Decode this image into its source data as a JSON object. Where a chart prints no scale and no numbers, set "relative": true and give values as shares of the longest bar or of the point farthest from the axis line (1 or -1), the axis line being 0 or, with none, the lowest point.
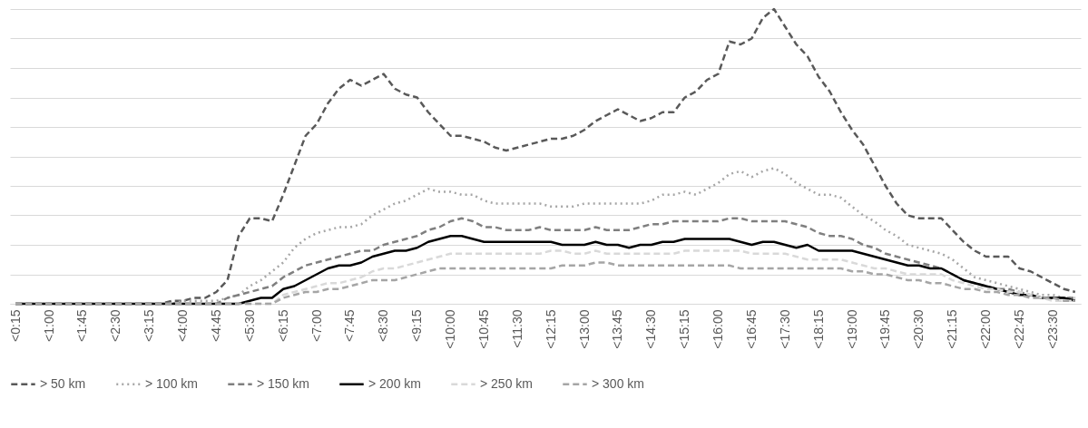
{
  "chart_data": {
    "type": "line",
    "relative": true,
    "grid": "y",
    "legend": "bottom",
    "categories": [
      "<0:15",
      null,
      null,
      "<1:00",
      null,
      null,
      "<1:45",
      null,
      null,
      "<2:30",
      null,
      null,
      "<3:15",
      null,
      null,
      "<4:00",
      null,
      null,
      "<4:45",
      null,
      null,
      "<5:30",
      null,
      null,
      "<6:15",
      null,
      null,
      "<7:00",
      null,
      null,
      "<7:45",
      null,
      null,
      "<8:30",
      null,
      null,
      "<9:15",
      null,
      null,
      "<10:00",
      null,
      null,
      "<10:45",
      null,
      null,
      "<11:30",
      null,
      null,
      "<12:15",
      null,
      null,
      "<13:00",
      null,
      null,
      "<13:45",
      null,
      null,
      "<14:30",
      null,
      null,
      "<15:15",
      null,
      null,
      "<16:00",
      null,
      null,
      "<16:45",
      null,
      null,
      "<17:30",
      null,
      null,
      "<18:15",
      null,
      null,
      "<19:00",
      null,
      null,
      "<19:45",
      null,
      null,
      "<20:30",
      null,
      null,
      "<21:15",
      null,
      null,
      "<22:00",
      null,
      null,
      "<22:45",
      null,
      null,
      "<23:30",
      null,
      null
    ],
    "series": [
      {
        "name": "> 50 km",
        "color": "#595959",
        "line_style": "dashed",
        "values": [
          0,
          0,
          0,
          0,
          0,
          0,
          0,
          0,
          0,
          0,
          0,
          0,
          0,
          0,
          0.01,
          0.01,
          0.02,
          0.02,
          0.04,
          0.08,
          0.23,
          0.29,
          0.29,
          0.28,
          0.37,
          0.47,
          0.57,
          0.61,
          0.68,
          0.73,
          0.76,
          0.74,
          0.76,
          0.78,
          0.73,
          0.71,
          0.7,
          0.65,
          0.61,
          0.57,
          0.57,
          0.56,
          0.55,
          0.53,
          0.52,
          0.53,
          0.54,
          0.55,
          0.56,
          0.56,
          0.57,
          0.59,
          0.62,
          0.64,
          0.66,
          0.64,
          0.62,
          0.63,
          0.65,
          0.65,
          0.7,
          0.72,
          0.76,
          0.78,
          0.89,
          0.88,
          0.9,
          0.97,
          1,
          0.94,
          0.88,
          0.84,
          0.77,
          0.72,
          0.65,
          0.59,
          0.54,
          0.47,
          0.4,
          0.34,
          0.3,
          0.29,
          0.29,
          0.29,
          0.25,
          0.21,
          0.18,
          0.16,
          0.16,
          0.16,
          0.12,
          0.11,
          0.09,
          0.07,
          0.05,
          0.04
        ]
      },
      {
        "name": "> 100 km",
        "color": "#a6a6a6",
        "line_style": "dotted",
        "values": [
          0,
          0,
          0,
          0,
          0,
          0,
          0,
          0,
          0,
          0,
          0,
          0,
          0,
          0,
          0,
          0.01,
          0.01,
          0.01,
          0.01,
          0.02,
          0.03,
          0.06,
          0.08,
          0.11,
          0.14,
          0.19,
          0.22,
          0.24,
          0.25,
          0.26,
          0.26,
          0.27,
          0.3,
          0.32,
          0.34,
          0.35,
          0.37,
          0.39,
          0.38,
          0.38,
          0.37,
          0.37,
          0.35,
          0.34,
          0.34,
          0.34,
          0.34,
          0.34,
          0.33,
          0.33,
          0.33,
          0.34,
          0.34,
          0.34,
          0.34,
          0.34,
          0.34,
          0.35,
          0.37,
          0.37,
          0.38,
          0.37,
          0.39,
          0.41,
          0.44,
          0.45,
          0.43,
          0.45,
          0.46,
          0.44,
          0.41,
          0.39,
          0.37,
          0.37,
          0.36,
          0.33,
          0.3,
          0.28,
          0.25,
          0.23,
          0.2,
          0.19,
          0.18,
          0.17,
          0.15,
          0.12,
          0.09,
          0.08,
          0.07,
          0.06,
          0.05,
          0.04,
          0.03,
          0.03,
          0.02,
          0.02
        ]
      },
      {
        "name": "> 150 km",
        "color": "#7f7f7f",
        "line_style": "dashed",
        "values": [
          0,
          0,
          0,
          0,
          0,
          0,
          0,
          0,
          0,
          0,
          0,
          0,
          0,
          0,
          0,
          0,
          0,
          0,
          0,
          0.02,
          0.03,
          0.04,
          0.05,
          0.06,
          0.09,
          0.11,
          0.13,
          0.14,
          0.15,
          0.16,
          0.17,
          0.18,
          0.18,
          0.2,
          0.21,
          0.22,
          0.23,
          0.25,
          0.26,
          0.28,
          0.29,
          0.28,
          0.26,
          0.26,
          0.25,
          0.25,
          0.25,
          0.26,
          0.25,
          0.25,
          0.25,
          0.25,
          0.26,
          0.25,
          0.25,
          0.25,
          0.26,
          0.27,
          0.27,
          0.28,
          0.28,
          0.28,
          0.28,
          0.28,
          0.29,
          0.29,
          0.28,
          0.28,
          0.28,
          0.28,
          0.27,
          0.26,
          0.24,
          0.23,
          0.23,
          0.22,
          0.2,
          0.19,
          0.17,
          0.16,
          0.15,
          0.14,
          0.13,
          0.12,
          0.1,
          0.08,
          0.07,
          0.06,
          0.05,
          0.05,
          0.04,
          0.03,
          0.02,
          0.02,
          0.02,
          0.02
        ]
      },
      {
        "name": "> 200 km",
        "color": "#000000",
        "line_style": "solid",
        "values": [
          0,
          0,
          0,
          0,
          0,
          0,
          0,
          0,
          0,
          0,
          0,
          0,
          0,
          0,
          0,
          0,
          0,
          0,
          0,
          0,
          0,
          0.01,
          0.02,
          0.02,
          0.05,
          0.06,
          0.08,
          0.1,
          0.12,
          0.13,
          0.13,
          0.14,
          0.16,
          0.17,
          0.18,
          0.18,
          0.19,
          0.21,
          0.22,
          0.23,
          0.23,
          0.22,
          0.21,
          0.21,
          0.21,
          0.21,
          0.21,
          0.21,
          0.21,
          0.2,
          0.2,
          0.2,
          0.21,
          0.2,
          0.2,
          0.19,
          0.2,
          0.2,
          0.21,
          0.21,
          0.22,
          0.22,
          0.22,
          0.22,
          0.22,
          0.21,
          0.2,
          0.21,
          0.21,
          0.2,
          0.19,
          0.2,
          0.18,
          0.18,
          0.18,
          0.18,
          0.17,
          0.16,
          0.15,
          0.14,
          0.13,
          0.13,
          0.12,
          0.12,
          0.1,
          0.08,
          0.07,
          0.06,
          0.05,
          0.04,
          0.03,
          0.03,
          0.02,
          0.02,
          0.02,
          0.01
        ]
      },
      {
        "name": "> 250 km",
        "color": "#d9d9d9",
        "line_style": "dashed",
        "values": [
          0,
          0,
          0,
          0,
          0,
          0,
          0,
          0,
          0,
          0,
          0,
          0,
          0,
          0,
          0,
          0,
          0,
          0,
          0,
          0,
          0,
          0,
          0,
          0,
          0.03,
          0.04,
          0.05,
          0.06,
          0.07,
          0.07,
          0.08,
          0.09,
          0.11,
          0.12,
          0.12,
          0.13,
          0.14,
          0.15,
          0.16,
          0.17,
          0.17,
          0.17,
          0.17,
          0.17,
          0.17,
          0.17,
          0.17,
          0.17,
          0.18,
          0.18,
          0.17,
          0.17,
          0.18,
          0.17,
          0.17,
          0.17,
          0.17,
          0.17,
          0.17,
          0.17,
          0.18,
          0.18,
          0.18,
          0.18,
          0.18,
          0.18,
          0.17,
          0.17,
          0.17,
          0.17,
          0.16,
          0.15,
          0.15,
          0.15,
          0.15,
          0.14,
          0.13,
          0.12,
          0.12,
          0.11,
          0.1,
          0.1,
          0.1,
          0.1,
          0.08,
          0.07,
          0.06,
          0.05,
          0.05,
          0.04,
          0.04,
          0.03,
          0.02,
          0.01,
          0.01,
          0.01
        ]
      },
      {
        "name": "> 300 km",
        "color": "#a5a5a5",
        "line_style": "dashed",
        "values": [
          0,
          0,
          0,
          0,
          0,
          0,
          0,
          0,
          0,
          0,
          0,
          0,
          0,
          0,
          0,
          0,
          0,
          0,
          0,
          0,
          0,
          0,
          0,
          0,
          0.02,
          0.03,
          0.04,
          0.04,
          0.05,
          0.05,
          0.06,
          0.07,
          0.08,
          0.08,
          0.08,
          0.09,
          0.1,
          0.11,
          0.12,
          0.12,
          0.12,
          0.12,
          0.12,
          0.12,
          0.12,
          0.12,
          0.12,
          0.12,
          0.12,
          0.13,
          0.13,
          0.13,
          0.14,
          0.14,
          0.13,
          0.13,
          0.13,
          0.13,
          0.13,
          0.13,
          0.13,
          0.13,
          0.13,
          0.13,
          0.13,
          0.12,
          0.12,
          0.12,
          0.12,
          0.12,
          0.12,
          0.12,
          0.12,
          0.12,
          0.12,
          0.11,
          0.11,
          0.1,
          0.1,
          0.09,
          0.08,
          0.08,
          0.07,
          0.07,
          0.06,
          0.05,
          0.05,
          0.04,
          0.04,
          0.03,
          0.03,
          0.02,
          0.02,
          0.02,
          0.01,
          0.01
        ]
      }
    ]
  }
}
